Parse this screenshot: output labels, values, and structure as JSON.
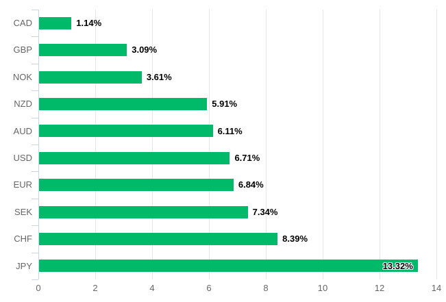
{
  "chart_data": {
    "type": "bar",
    "orientation": "horizontal",
    "title": "",
    "xlabel": "",
    "ylabel": "",
    "categories": [
      "CAD",
      "GBP",
      "NOK",
      "NZD",
      "AUD",
      "USD",
      "EUR",
      "SEK",
      "CHF",
      "JPY"
    ],
    "values": [
      1.14,
      3.09,
      3.61,
      5.91,
      6.11,
      6.71,
      6.84,
      7.34,
      8.39,
      13.32
    ],
    "value_labels": [
      "1.14%",
      "3.09%",
      "3.61%",
      "5.91%",
      "6.11%",
      "6.71%",
      "6.84%",
      "7.34%",
      "8.39%",
      "13.32%"
    ],
    "xlim": [
      0,
      14
    ],
    "x_ticks": [
      "0",
      "2",
      "4",
      "6",
      "8",
      "10",
      "12",
      "14"
    ],
    "x_tick_values": [
      0,
      2,
      4,
      6,
      8,
      10,
      12,
      14
    ],
    "grid": true,
    "legend": "none",
    "colors": {
      "bar": "#00b969",
      "axis_line": "#ccd6eb",
      "gridline": "#e6e6e6",
      "tick_label": "#666666",
      "category_label": "#666666",
      "value_label": "#000000",
      "background": "#ffffff"
    }
  }
}
